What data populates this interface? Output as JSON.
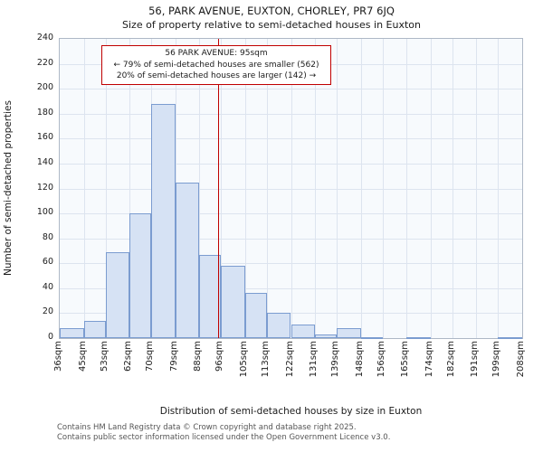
{
  "annotation": {
    "line1": "56 PARK AVENUE: 95sqm",
    "line2": "← 79% of semi-detached houses are smaller (562)",
    "line3": "20% of semi-detached houses are larger (142) →"
  },
  "footer": {
    "line1": "Contains HM Land Registry data © Crown copyright and database right 2025.",
    "line2": "Contains public sector information licensed under the Open Government Licence v3.0."
  },
  "chart_data": {
    "type": "bar",
    "title": "56, PARK AVENUE, EUXTON, CHORLEY, PR7 6JQ",
    "subtitle": "Size of property relative to semi-detached houses in Euxton",
    "xlabel": "Distribution of semi-detached houses by size in Euxton",
    "ylabel": "Number of semi-detached properties",
    "bin_edges": [
      36,
      45,
      53,
      62,
      70,
      79,
      88,
      96,
      105,
      113,
      122,
      131,
      139,
      148,
      156,
      165,
      174,
      182,
      191,
      199,
      208
    ],
    "x_tick_labels": [
      "36sqm",
      "45sqm",
      "53sqm",
      "62sqm",
      "70sqm",
      "79sqm",
      "88sqm",
      "96sqm",
      "105sqm",
      "113sqm",
      "122sqm",
      "131sqm",
      "139sqm",
      "148sqm",
      "156sqm",
      "165sqm",
      "174sqm",
      "182sqm",
      "191sqm",
      "199sqm",
      "208sqm"
    ],
    "values": [
      8,
      14,
      69,
      100,
      188,
      125,
      67,
      58,
      36,
      20,
      11,
      3,
      8,
      1,
      0,
      1,
      0,
      0,
      0,
      1
    ],
    "ylim": [
      0,
      240
    ],
    "ytick_step": 20,
    "marker_value": 95,
    "marker_color": "#c00000",
    "bar_fill": "#d6e2f4",
    "bar_edge": "#7b9cd0",
    "grid": true,
    "legend_position": "none"
  }
}
